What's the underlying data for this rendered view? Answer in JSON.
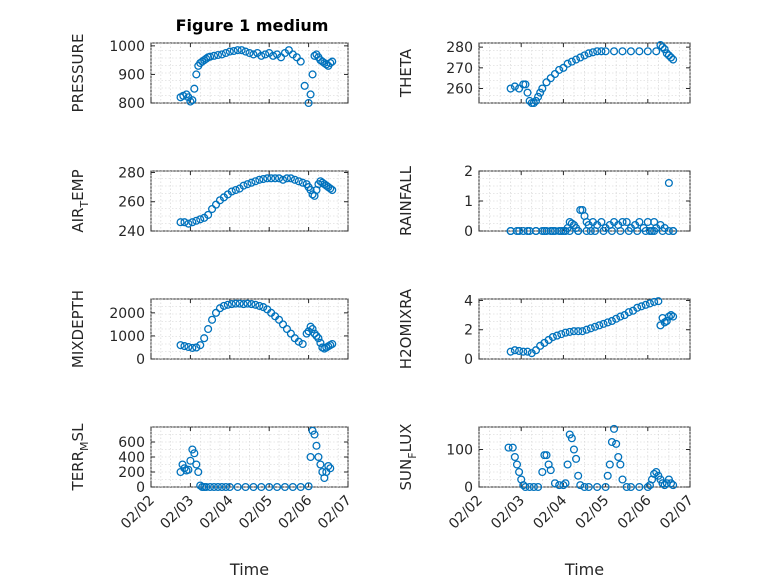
{
  "figure": {
    "title": "Figure 1 medium"
  },
  "colors": {
    "marker": "#0072BD",
    "axis": "#262626",
    "grid": "#d0d0d0"
  },
  "chart_data": [
    {
      "type": "scatter",
      "ylabel": "PRESSURE",
      "ylabel_sub": "",
      "ylabel_tail": "",
      "title": "Figure 1 medium",
      "ylim": [
        800,
        1010
      ],
      "yticks": [
        800,
        900,
        1000
      ],
      "xlim": [
        0,
        5
      ],
      "xticks": [],
      "xlabel": "",
      "grid": true,
      "x": [
        0.75,
        0.82,
        0.9,
        0.95,
        1.0,
        1.05,
        1.1,
        1.15,
        1.2,
        1.25,
        1.3,
        1.35,
        1.4,
        1.45,
        1.5,
        1.6,
        1.7,
        1.8,
        1.9,
        2.0,
        2.1,
        2.2,
        2.3,
        2.4,
        2.5,
        2.6,
        2.7,
        2.8,
        2.9,
        3.0,
        3.1,
        3.2,
        3.3,
        3.4,
        3.5,
        3.6,
        3.7,
        3.8,
        3.9,
        4.0,
        4.05,
        4.1,
        4.15,
        4.2,
        4.25,
        4.3,
        4.35,
        4.4,
        4.45,
        4.5,
        4.55,
        4.6
      ],
      "y": [
        820,
        825,
        830,
        820,
        805,
        810,
        850,
        900,
        930,
        940,
        945,
        950,
        955,
        960,
        962,
        965,
        968,
        970,
        975,
        980,
        982,
        985,
        985,
        980,
        975,
        970,
        975,
        965,
        970,
        975,
        965,
        970,
        960,
        975,
        985,
        970,
        960,
        945,
        860,
        800,
        830,
        900,
        965,
        970,
        960,
        950,
        945,
        940,
        935,
        930,
        940,
        945
      ]
    },
    {
      "type": "scatter",
      "ylabel": "THETA",
      "ylabel_sub": "",
      "ylabel_tail": "",
      "ylim": [
        253,
        282
      ],
      "yticks": [
        260,
        270,
        280
      ],
      "xlim": [
        0,
        5
      ],
      "xticks": [],
      "xlabel": "",
      "grid": true,
      "x": [
        0.75,
        0.85,
        0.95,
        1.05,
        1.1,
        1.15,
        1.2,
        1.25,
        1.3,
        1.35,
        1.4,
        1.45,
        1.5,
        1.6,
        1.7,
        1.8,
        1.9,
        2.0,
        2.1,
        2.2,
        2.3,
        2.4,
        2.5,
        2.6,
        2.7,
        2.8,
        2.9,
        3.0,
        3.2,
        3.4,
        3.6,
        3.8,
        4.0,
        4.2,
        4.3,
        4.35,
        4.4,
        4.45,
        4.5,
        4.55,
        4.6
      ],
      "y": [
        260,
        261,
        260,
        262,
        262,
        258,
        254,
        253,
        253,
        254,
        256,
        258,
        260,
        263,
        265,
        267,
        269,
        270,
        272,
        273,
        274,
        275,
        276,
        277,
        277.5,
        278,
        278,
        278,
        278,
        278,
        278,
        278,
        278,
        278,
        281,
        280,
        279,
        277,
        276,
        275,
        274
      ]
    },
    {
      "type": "scatter",
      "ylabel": "AIR",
      "ylabel_sub": "T",
      "ylabel_tail": "EMP",
      "ylim": [
        240,
        281
      ],
      "yticks": [
        240,
        260,
        280
      ],
      "xlim": [
        0,
        5
      ],
      "xticks": [],
      "xlabel": "",
      "grid": true,
      "x": [
        0.75,
        0.85,
        0.95,
        1.05,
        1.15,
        1.25,
        1.35,
        1.45,
        1.55,
        1.65,
        1.75,
        1.85,
        1.95,
        2.05,
        2.15,
        2.25,
        2.35,
        2.45,
        2.55,
        2.65,
        2.75,
        2.85,
        2.95,
        3.05,
        3.15,
        3.25,
        3.35,
        3.45,
        3.55,
        3.65,
        3.75,
        3.85,
        3.95,
        4.0,
        4.05,
        4.1,
        4.15,
        4.2,
        4.25,
        4.3,
        4.35,
        4.4,
        4.45,
        4.5,
        4.55,
        4.6
      ],
      "y": [
        246,
        246,
        245,
        246,
        247,
        248,
        249,
        251,
        255,
        258,
        261,
        263,
        265,
        267,
        268,
        269,
        271,
        272,
        273,
        274,
        275,
        275.5,
        276,
        276,
        276,
        276,
        275,
        276,
        276,
        275,
        274,
        273,
        272,
        270,
        268,
        265,
        264,
        268,
        272,
        274,
        273,
        272,
        271,
        270,
        269,
        268
      ]
    },
    {
      "type": "scatter",
      "ylabel": "RAINFALL",
      "ylabel_sub": "",
      "ylabel_tail": "",
      "ylim": [
        0,
        2
      ],
      "yticks": [
        0,
        1,
        2
      ],
      "xlim": [
        0,
        5
      ],
      "xticks": [],
      "xlabel": "",
      "grid": true,
      "x": [
        0.75,
        0.9,
        1.05,
        1.2,
        1.35,
        1.5,
        1.6,
        1.7,
        1.8,
        1.9,
        2.0,
        2.05,
        2.1,
        2.15,
        2.2,
        2.25,
        2.3,
        2.35,
        2.4,
        2.45,
        2.5,
        2.55,
        2.6,
        2.65,
        2.7,
        2.8,
        2.9,
        3.0,
        3.1,
        3.2,
        3.3,
        3.4,
        3.5,
        3.6,
        3.7,
        3.8,
        3.9,
        4.0,
        4.05,
        4.1,
        4.15,
        4.2,
        4.3,
        4.4,
        4.5,
        4.6
      ],
      "y": [
        0,
        0,
        0,
        0,
        0,
        0,
        0,
        0,
        0,
        0,
        0,
        0,
        0.1,
        0.3,
        0.25,
        0.2,
        0.1,
        0,
        0.7,
        0.7,
        0.5,
        0.3,
        0.2,
        0,
        0.3,
        0.2,
        0.3,
        0.1,
        0.2,
        0.3,
        0.2,
        0.3,
        0.3,
        0.1,
        0.2,
        0.3,
        0.1,
        0.3,
        0,
        0,
        0.3,
        0.1,
        0.2,
        0.1,
        1.6,
        0
      ],
      "x2": [
        0.75,
        0.95,
        1.15,
        1.35,
        1.55,
        1.75,
        1.95,
        2.15,
        2.35,
        2.55,
        2.75,
        2.95,
        3.15,
        3.35,
        3.55,
        3.75,
        3.95,
        4.15,
        4.35,
        4.5,
        4.6
      ],
      "y2": [
        0,
        0,
        0,
        0,
        0,
        0,
        0,
        0,
        0,
        0,
        0,
        0,
        0,
        0,
        0,
        0,
        0,
        0,
        0,
        0,
        0
      ]
    },
    {
      "type": "scatter",
      "ylabel": "MIXDEPTH",
      "ylabel_sub": "",
      "ylabel_tail": "",
      "ylim": [
        0,
        2600
      ],
      "yticks": [
        0,
        1000,
        2000
      ],
      "xlim": [
        0,
        5
      ],
      "xticks": [],
      "xlabel": "",
      "grid": true,
      "x": [
        0.75,
        0.85,
        0.95,
        1.05,
        1.15,
        1.25,
        1.35,
        1.45,
        1.55,
        1.65,
        1.75,
        1.85,
        1.95,
        2.05,
        2.15,
        2.25,
        2.35,
        2.45,
        2.55,
        2.65,
        2.75,
        2.85,
        2.95,
        3.05,
        3.15,
        3.25,
        3.35,
        3.45,
        3.55,
        3.65,
        3.75,
        3.85,
        3.95,
        4.0,
        4.05,
        4.1,
        4.15,
        4.2,
        4.25,
        4.3,
        4.35,
        4.4,
        4.45,
        4.5,
        4.55,
        4.6
      ],
      "y": [
        600,
        560,
        520,
        480,
        500,
        600,
        900,
        1300,
        1700,
        2000,
        2200,
        2300,
        2350,
        2380,
        2400,
        2400,
        2380,
        2400,
        2380,
        2350,
        2300,
        2250,
        2150,
        2000,
        1850,
        1700,
        1500,
        1300,
        1100,
        900,
        750,
        650,
        1100,
        1200,
        1400,
        1300,
        1100,
        1000,
        900,
        700,
        500,
        450,
        500,
        550,
        600,
        650
      ]
    },
    {
      "type": "scatter",
      "ylabel": "H2OMIXRA",
      "ylabel_sub": "",
      "ylabel_tail": "",
      "ylim": [
        0,
        4.1
      ],
      "yticks": [
        0,
        2,
        4
      ],
      "xlim": [
        0,
        5
      ],
      "xticks": [],
      "xlabel": "",
      "grid": true,
      "x": [
        0.75,
        0.85,
        0.95,
        1.05,
        1.15,
        1.25,
        1.35,
        1.45,
        1.55,
        1.65,
        1.75,
        1.85,
        1.95,
        2.05,
        2.15,
        2.25,
        2.35,
        2.45,
        2.55,
        2.65,
        2.75,
        2.85,
        2.95,
        3.05,
        3.15,
        3.25,
        3.35,
        3.45,
        3.55,
        3.65,
        3.75,
        3.85,
        3.95,
        4.05,
        4.15,
        4.25,
        4.3,
        4.35,
        4.4,
        4.45,
        4.5,
        4.55,
        4.6
      ],
      "y": [
        0.5,
        0.6,
        0.55,
        0.5,
        0.5,
        0.4,
        0.6,
        0.9,
        1.1,
        1.3,
        1.5,
        1.6,
        1.7,
        1.8,
        1.85,
        1.9,
        1.9,
        1.9,
        2.0,
        2.1,
        2.2,
        2.3,
        2.4,
        2.5,
        2.6,
        2.75,
        2.9,
        3.0,
        3.2,
        3.3,
        3.5,
        3.6,
        3.7,
        3.8,
        3.9,
        3.95,
        2.3,
        2.8,
        2.5,
        2.6,
        2.9,
        3.0,
        2.9
      ]
    },
    {
      "type": "scatter",
      "ylabel": "TERR",
      "ylabel_sub": "M",
      "ylabel_tail": "SL",
      "ylim": [
        0,
        800
      ],
      "yticks": [
        0,
        200,
        400,
        600
      ],
      "xlim": [
        0,
        5
      ],
      "xticks": [
        "02/02",
        "02/03",
        "02/04",
        "02/05",
        "02/06",
        "02/07"
      ],
      "xlabel": "Time",
      "grid": true,
      "x": [
        0.75,
        0.8,
        0.85,
        0.9,
        0.95,
        1.0,
        1.05,
        1.1,
        1.15,
        1.2,
        1.25,
        1.3,
        1.35,
        1.4,
        1.5,
        1.6,
        1.7,
        1.8,
        1.9,
        2.0,
        2.2,
        2.4,
        2.6,
        2.8,
        3.0,
        3.2,
        3.4,
        3.6,
        3.8,
        4.0,
        4.05,
        4.1,
        4.15,
        4.2,
        4.25,
        4.3,
        4.35,
        4.4,
        4.45,
        4.5,
        4.55
      ],
      "y": [
        200,
        300,
        250,
        220,
        230,
        350,
        500,
        450,
        300,
        200,
        20,
        0,
        0,
        0,
        0,
        0,
        0,
        0,
        0,
        0,
        0,
        0,
        0,
        0,
        0,
        0,
        0,
        0,
        0,
        10,
        400,
        750,
        700,
        550,
        400,
        300,
        200,
        120,
        200,
        280,
        250
      ]
    },
    {
      "type": "scatter",
      "ylabel": "SUN",
      "ylabel_sub": "F",
      "ylabel_tail": "LUX",
      "ylim": [
        0,
        160
      ],
      "yticks": [
        0,
        100
      ],
      "xlim": [
        0,
        5
      ],
      "xticks": [
        "02/02",
        "02/03",
        "02/04",
        "02/05",
        "02/06",
        "02/07"
      ],
      "xlabel": "Time",
      "grid": true,
      "x": [
        0.7,
        0.8,
        0.85,
        0.9,
        0.95,
        1.0,
        1.05,
        1.1,
        1.2,
        1.3,
        1.4,
        1.5,
        1.55,
        1.6,
        1.65,
        1.7,
        1.8,
        1.9,
        2.0,
        2.05,
        2.1,
        2.15,
        2.2,
        2.25,
        2.3,
        2.35,
        2.4,
        2.5,
        2.6,
        2.8,
        3.0,
        3.05,
        3.1,
        3.15,
        3.2,
        3.25,
        3.3,
        3.35,
        3.4,
        3.5,
        3.6,
        3.8,
        4.0,
        4.05,
        4.1,
        4.15,
        4.2,
        4.25,
        4.3,
        4.35,
        4.4,
        4.45,
        4.5,
        4.55,
        4.6
      ],
      "y": [
        105,
        105,
        80,
        60,
        40,
        20,
        5,
        0,
        0,
        0,
        0,
        40,
        85,
        85,
        60,
        45,
        10,
        5,
        5,
        10,
        60,
        140,
        130,
        100,
        75,
        30,
        5,
        0,
        0,
        0,
        0,
        30,
        60,
        120,
        155,
        115,
        80,
        60,
        20,
        0,
        0,
        0,
        0,
        5,
        20,
        35,
        40,
        30,
        20,
        10,
        5,
        10,
        20,
        10,
        5
      ]
    }
  ]
}
